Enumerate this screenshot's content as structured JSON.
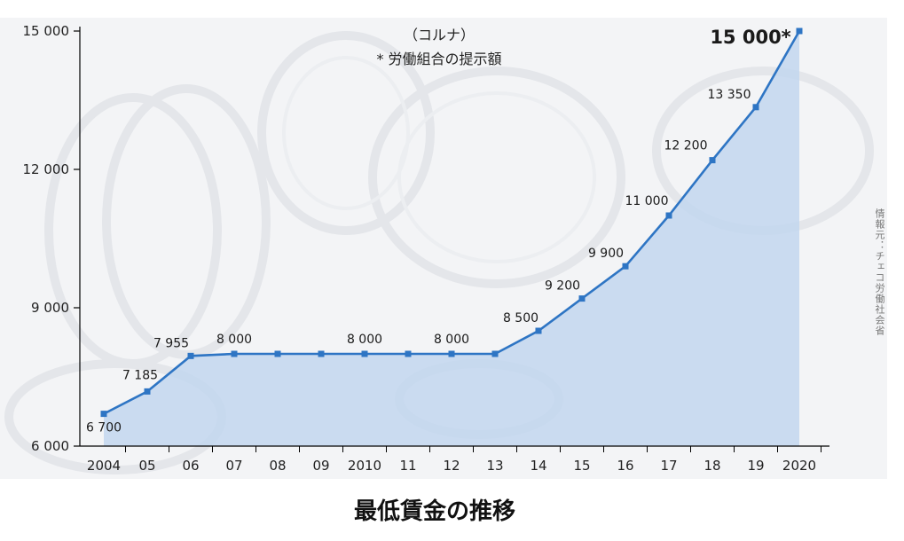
{
  "chart_data": {
    "type": "area",
    "title": "最低賃金の推移",
    "unit_note": "（コルナ）",
    "footnote": "* 労働組合の提示額",
    "source": "情報元：チェコ労働社会省",
    "x": [
      "2004",
      "05",
      "06",
      "07",
      "08",
      "09",
      "2010",
      "11",
      "12",
      "13",
      "14",
      "15",
      "16",
      "17",
      "18",
      "19",
      "2020"
    ],
    "values": [
      6700,
      7185,
      7955,
      8000,
      8000,
      8000,
      8000,
      8000,
      8000,
      8000,
      8500,
      9200,
      9900,
      11000,
      12200,
      13350,
      15000
    ],
    "point_labels": [
      "6 700",
      "7 185",
      "7 955",
      "8 000",
      "",
      "",
      "8 000",
      "",
      "8 000",
      "",
      "8 500",
      "9 200",
      "9 900",
      "11 000",
      "12 200",
      "13 350",
      "15 000*"
    ],
    "y_ticks": [
      6000,
      9000,
      12000,
      15000
    ],
    "y_tick_labels": [
      "6 000",
      "9 000",
      "12 000",
      "15 000"
    ],
    "ylim": [
      6000,
      15000
    ],
    "grid": false,
    "colors": {
      "line": "#2e75c4",
      "fill": "#c2d6ee",
      "marker": "#2e75c4",
      "axis": "#000000"
    }
  }
}
